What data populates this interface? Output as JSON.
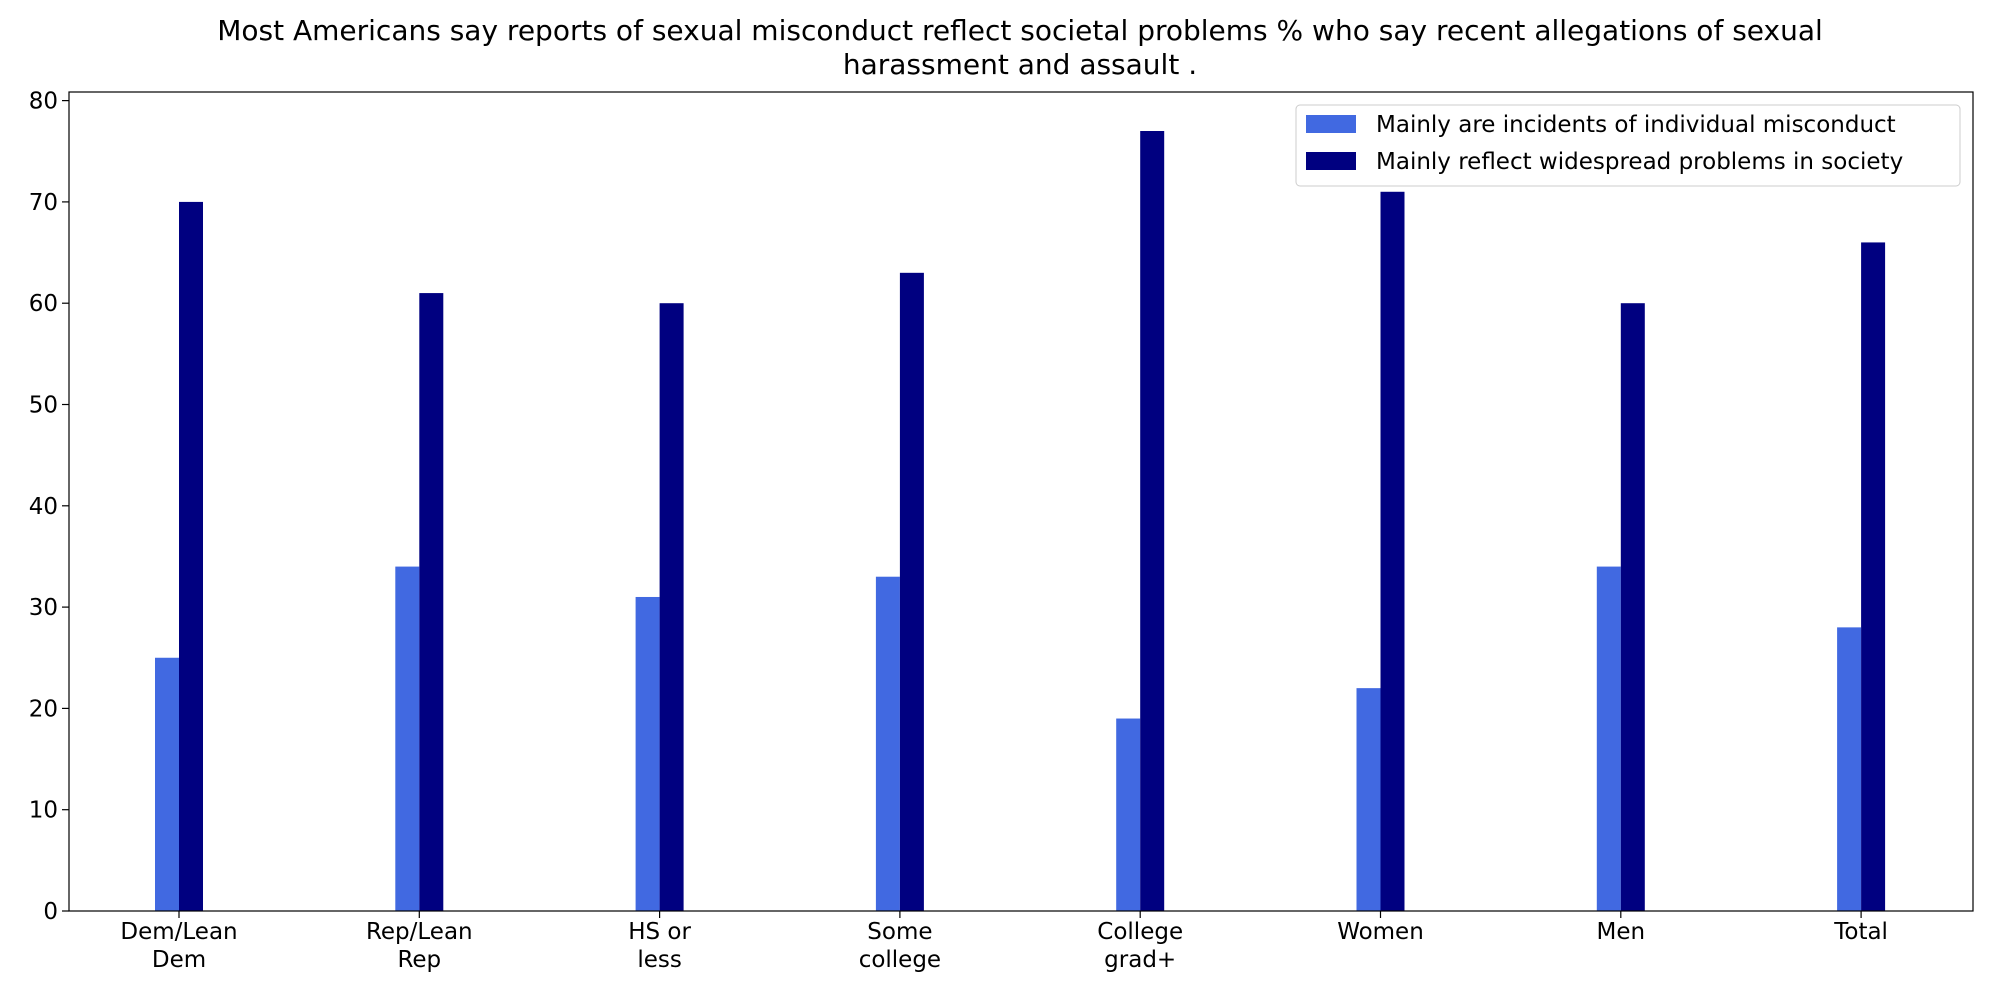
{
  "chart_data": {
    "type": "bar",
    "title": "Most Americans say reports of sexual misconduct reflect societal problems % who say recent allegations of sexual\nharassment and assault .",
    "categories": [
      "Dem/Lean\nDem",
      "Rep/Lean\nRep",
      "HS or\nless",
      "Some\ncollege",
      "College\ngrad+",
      "Women",
      "Men",
      "Total"
    ],
    "series": [
      {
        "name": "Mainly are incidents of individual misconduct",
        "color": "#4169e1",
        "values": [
          25,
          34,
          31,
          33,
          19,
          22,
          34,
          28
        ]
      },
      {
        "name": "Mainly reflect widespread problems in society",
        "color": "#000080",
        "values": [
          70,
          61,
          60,
          63,
          77,
          71,
          60,
          66
        ]
      }
    ],
    "ylim": [
      0,
      80.85
    ],
    "yticks": [
      0,
      10,
      20,
      30,
      40,
      50,
      60,
      70,
      80
    ],
    "legend": "upper right"
  }
}
